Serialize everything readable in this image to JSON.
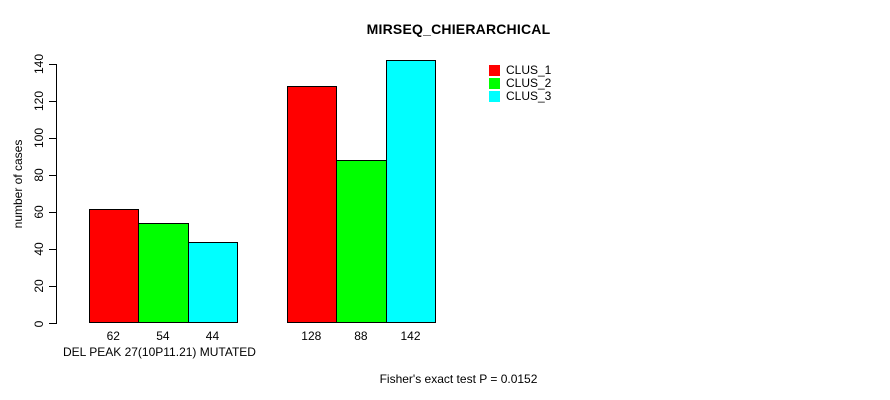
{
  "chart_data": {
    "type": "bar",
    "title": "MIRSEQ_CHIERARCHICAL",
    "ylabel": "number of cases",
    "xlabel": "DEL PEAK 27(10P11.21) MUTATED",
    "footer": "Fisher's exact test P = 0.0152",
    "ylim": [
      0,
      140
    ],
    "yticks": [
      0,
      20,
      40,
      60,
      80,
      100,
      120,
      140
    ],
    "grid": false,
    "legend_position": "top-right",
    "series": [
      {
        "name": "CLUS_1",
        "color": "#ff0000",
        "values": [
          62,
          128
        ]
      },
      {
        "name": "CLUS_2",
        "color": "#00ff00",
        "values": [
          54,
          88
        ]
      },
      {
        "name": "CLUS_3",
        "color": "#00ffff",
        "values": [
          44,
          142
        ]
      }
    ],
    "bar_labels": [
      [
        "62",
        "54",
        "44"
      ],
      [
        "128",
        "88",
        "142"
      ]
    ]
  }
}
